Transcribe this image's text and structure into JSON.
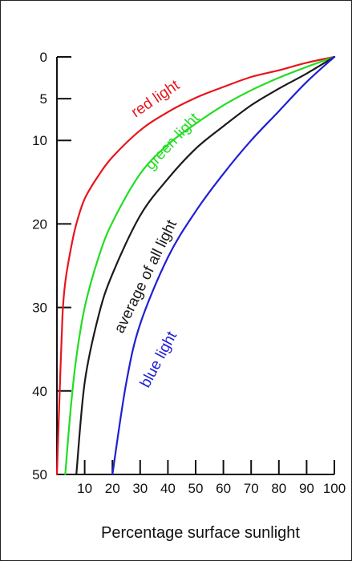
{
  "chart_data": {
    "type": "line",
    "title": "",
    "xlabel": "Percentage surface sunlight",
    "ylabel": "",
    "xlim": [
      0,
      100
    ],
    "ylim": [
      0,
      50
    ],
    "y_inverted": true,
    "x_ticks": [
      "10",
      "20",
      "30",
      "40",
      "50",
      "60",
      "70",
      "80",
      "90",
      "100"
    ],
    "x_tick_values": [
      10,
      20,
      30,
      40,
      50,
      60,
      70,
      80,
      90,
      100
    ],
    "y_ticks": [
      "0",
      "5",
      "10",
      "20",
      "30",
      "40",
      "50"
    ],
    "y_tick_values": [
      0,
      5,
      10,
      20,
      30,
      40,
      50
    ],
    "grid": false,
    "legend": "none",
    "series": [
      {
        "name": "red light",
        "color": "#e8141c",
        "x": [
          100,
          90,
          80,
          70,
          60,
          50,
          40,
          30,
          20,
          15,
          10,
          7,
          5,
          3,
          2,
          1,
          0
        ],
        "y": [
          0,
          0.7,
          1.6,
          2.4,
          3.6,
          4.9,
          6.6,
          8.8,
          12.0,
          14.2,
          17.0,
          20.0,
          23.0,
          27.0,
          31.0,
          40.0,
          50.0
        ]
      },
      {
        "name": "green light",
        "color": "#22dd22",
        "x": [
          100,
          90,
          80,
          70,
          60,
          50,
          40,
          30,
          20,
          15,
          10,
          7,
          5,
          3
        ],
        "y": [
          0,
          1.2,
          2.5,
          4.0,
          5.8,
          8.0,
          10.5,
          14.0,
          19.8,
          24.0,
          30.0,
          36.0,
          42.0,
          50.0
        ]
      },
      {
        "name": "average of all light",
        "color": "#1a1a1a",
        "x": [
          100,
          90,
          80,
          70,
          60,
          50,
          40,
          30,
          20,
          15,
          10,
          7
        ],
        "y": [
          0,
          2.0,
          3.8,
          5.8,
          8.3,
          11.0,
          14.6,
          19.0,
          26.0,
          31.0,
          39.0,
          50.0
        ]
      },
      {
        "name": "blue light",
        "color": "#1f1fd6",
        "x": [
          100,
          90,
          80,
          70,
          60,
          50,
          40,
          30,
          25,
          20
        ],
        "y": [
          0,
          3.0,
          6.5,
          10.0,
          14.0,
          18.5,
          24.0,
          32.0,
          39.0,
          50.0
        ]
      }
    ],
    "annotations": [
      {
        "text": "red light",
        "color": "#e8141c"
      },
      {
        "text": "green light",
        "color": "#22dd22"
      },
      {
        "text": "average of all light",
        "color": "#1a1a1a"
      },
      {
        "text": "blue light",
        "color": "#1f1fd6"
      }
    ]
  }
}
